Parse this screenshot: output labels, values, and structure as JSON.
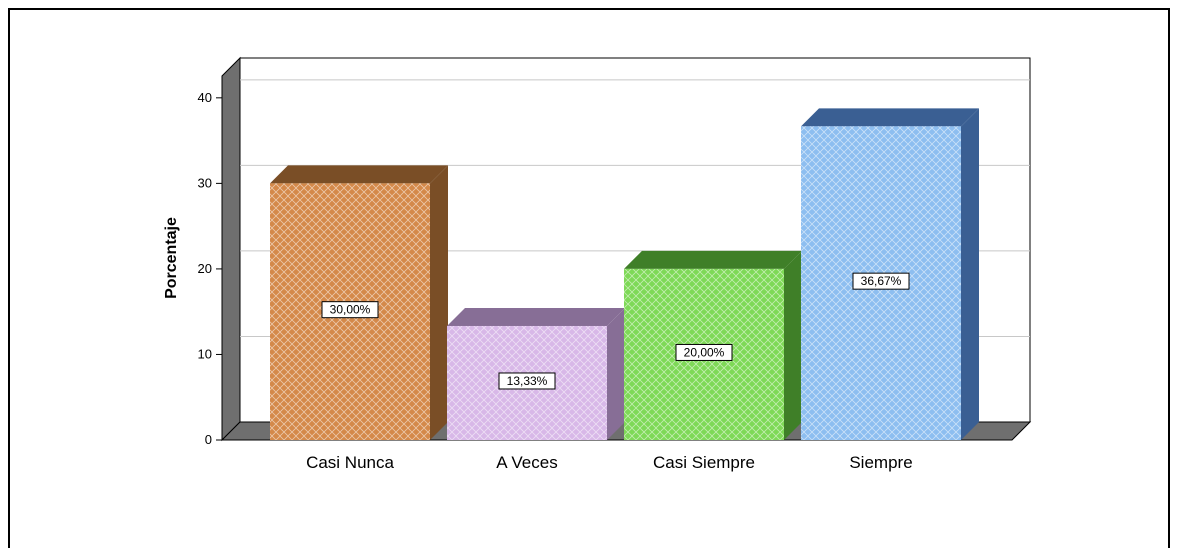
{
  "chart_data": {
    "type": "bar",
    "categories": [
      "Casi Nunca",
      "A Veces",
      "Casi Siempre",
      "Siempre"
    ],
    "values": [
      30.0,
      13.33,
      20.0,
      36.67
    ],
    "data_labels": [
      "30,00%",
      "13,33%",
      "20,00%",
      "36,67%"
    ],
    "colors": [
      "#D4894A",
      "#D8B8E8",
      "#7ED957",
      "#8DBEF0"
    ],
    "side_colors": [
      "#7A4E26",
      "#876E96",
      "#3F7F28",
      "#3A5F93"
    ],
    "ylabel": "Porcentaje",
    "xlabel": "",
    "yticks": [
      0,
      10,
      20,
      30,
      40
    ],
    "ylim": [
      0,
      42
    ],
    "grid": true,
    "style": "3d"
  }
}
